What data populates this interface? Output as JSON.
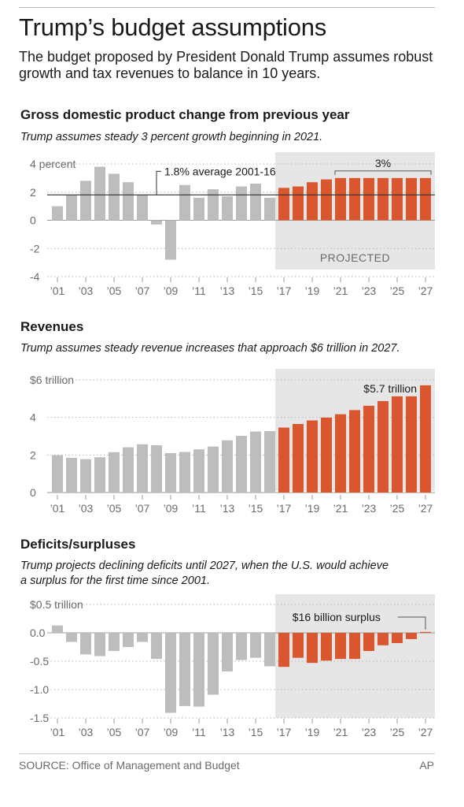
{
  "header": {
    "title": "Trump’s budget assumptions",
    "subtitle": "The budget proposed by President Donald Trump assumes robust growth and tax revenues to balance in 10 years."
  },
  "footer": {
    "source": "SOURCE: Office of Management and Budget",
    "credit": "AP"
  },
  "colors": {
    "actual": "#bdbdbd",
    "projected": "#d9562f",
    "projected_band": "#e6e6e6",
    "axis_text": "#6a6a6a"
  },
  "projected_label": "PROJECTED",
  "chart_data": [
    {
      "type": "bar",
      "title": "Gross domestic product change from previous year",
      "subtitle": "Trump assumes steady 3 percent growth beginning in 2021.",
      "unit": "percent",
      "categories": [
        "2001",
        "2002",
        "2003",
        "2004",
        "2005",
        "2006",
        "2007",
        "2008",
        "2009",
        "2010",
        "2011",
        "2012",
        "2013",
        "2014",
        "2015",
        "2016",
        "2017",
        "2018",
        "2019",
        "2020",
        "2021",
        "2022",
        "2023",
        "2024",
        "2025",
        "2026",
        "2027"
      ],
      "xtick_labels": [
        "’01",
        "’03",
        "’05",
        "’07",
        "’09",
        "’11",
        "’13",
        "’15",
        "’17",
        "’19",
        "’21",
        "’23",
        "’25",
        "’27"
      ],
      "yticks": [
        4,
        2,
        0,
        -2,
        -4
      ],
      "ytick_labels": [
        "4 percent",
        "2",
        "0",
        "-2",
        "-4"
      ],
      "ylim": [
        -4,
        4
      ],
      "projected_from": "2017",
      "series": [
        {
          "values": [
            1.0,
            1.8,
            2.8,
            3.8,
            3.3,
            2.7,
            1.8,
            -0.3,
            -2.8,
            2.5,
            1.6,
            2.2,
            1.7,
            2.4,
            2.6,
            1.6,
            2.3,
            2.4,
            2.7,
            2.9,
            3.0,
            3.0,
            3.0,
            3.0,
            3.0,
            3.0,
            3.0
          ]
        }
      ],
      "reference_line": {
        "value": 1.8,
        "label": "1.8% average 2001-16"
      },
      "bracket_label": "3%",
      "grid": true
    },
    {
      "type": "bar",
      "title": "Revenues",
      "subtitle": "Trump assumes steady revenue increases that approach $6 trillion in 2027.",
      "unit": "trillion dollars",
      "categories": [
        "2001",
        "2002",
        "2003",
        "2004",
        "2005",
        "2006",
        "2007",
        "2008",
        "2009",
        "2010",
        "2011",
        "2012",
        "2013",
        "2014",
        "2015",
        "2016",
        "2017",
        "2018",
        "2019",
        "2020",
        "2021",
        "2022",
        "2023",
        "2024",
        "2025",
        "2026",
        "2027"
      ],
      "xtick_labels": [
        "’01",
        "’03",
        "’05",
        "’07",
        "’09",
        "’11",
        "’13",
        "’15",
        "’17",
        "’19",
        "’21",
        "’23",
        "’25",
        "’27"
      ],
      "yticks": [
        6,
        4,
        2,
        0
      ],
      "ytick_labels": [
        "$6 trillion",
        "4",
        "2",
        "0"
      ],
      "ylim": [
        0,
        6
      ],
      "projected_from": "2017",
      "series": [
        {
          "values": [
            1.99,
            1.85,
            1.78,
            1.88,
            2.15,
            2.41,
            2.57,
            2.52,
            2.1,
            2.16,
            2.3,
            2.45,
            2.78,
            3.02,
            3.25,
            3.27,
            3.46,
            3.65,
            3.84,
            3.99,
            4.17,
            4.39,
            4.62,
            4.87,
            5.14,
            5.41,
            5.71
          ]
        }
      ],
      "annotation": "$5.7 trillion",
      "grid": true
    },
    {
      "type": "bar",
      "title": "Deficits/surpluses",
      "subtitle_lines": [
        "Trump projects declining deficits until 2027, when the U.S. would achieve",
        "a surplus for the first time since 2001."
      ],
      "unit": "trillion dollars",
      "categories": [
        "2001",
        "2002",
        "2003",
        "2004",
        "2005",
        "2006",
        "2007",
        "2008",
        "2009",
        "2010",
        "2011",
        "2012",
        "2013",
        "2014",
        "2015",
        "2016",
        "2017",
        "2018",
        "2019",
        "2020",
        "2021",
        "2022",
        "2023",
        "2024",
        "2025",
        "2026",
        "2027"
      ],
      "xtick_labels": [
        "’01",
        "’03",
        "’05",
        "’07",
        "’09",
        "’11",
        "’13",
        "’15",
        "’17",
        "’19",
        "’21",
        "’23",
        "’25",
        "’27"
      ],
      "yticks": [
        0.5,
        0,
        -0.5,
        -1.0,
        -1.5
      ],
      "ytick_labels": [
        "$0.5 trillion",
        "0.0",
        "-0.5",
        "-1.0",
        "-1.5"
      ],
      "ylim": [
        -1.5,
        0.5
      ],
      "projected_from": "2017",
      "series": [
        {
          "values": [
            0.13,
            -0.16,
            -0.38,
            -0.41,
            -0.32,
            -0.25,
            -0.16,
            -0.46,
            -1.41,
            -1.29,
            -1.3,
            -1.09,
            -0.68,
            -0.48,
            -0.44,
            -0.59,
            -0.6,
            -0.44,
            -0.53,
            -0.49,
            -0.46,
            -0.46,
            -0.32,
            -0.22,
            -0.18,
            -0.11,
            0.016
          ]
        }
      ],
      "annotation": "$16 billion surplus",
      "grid": true
    }
  ]
}
